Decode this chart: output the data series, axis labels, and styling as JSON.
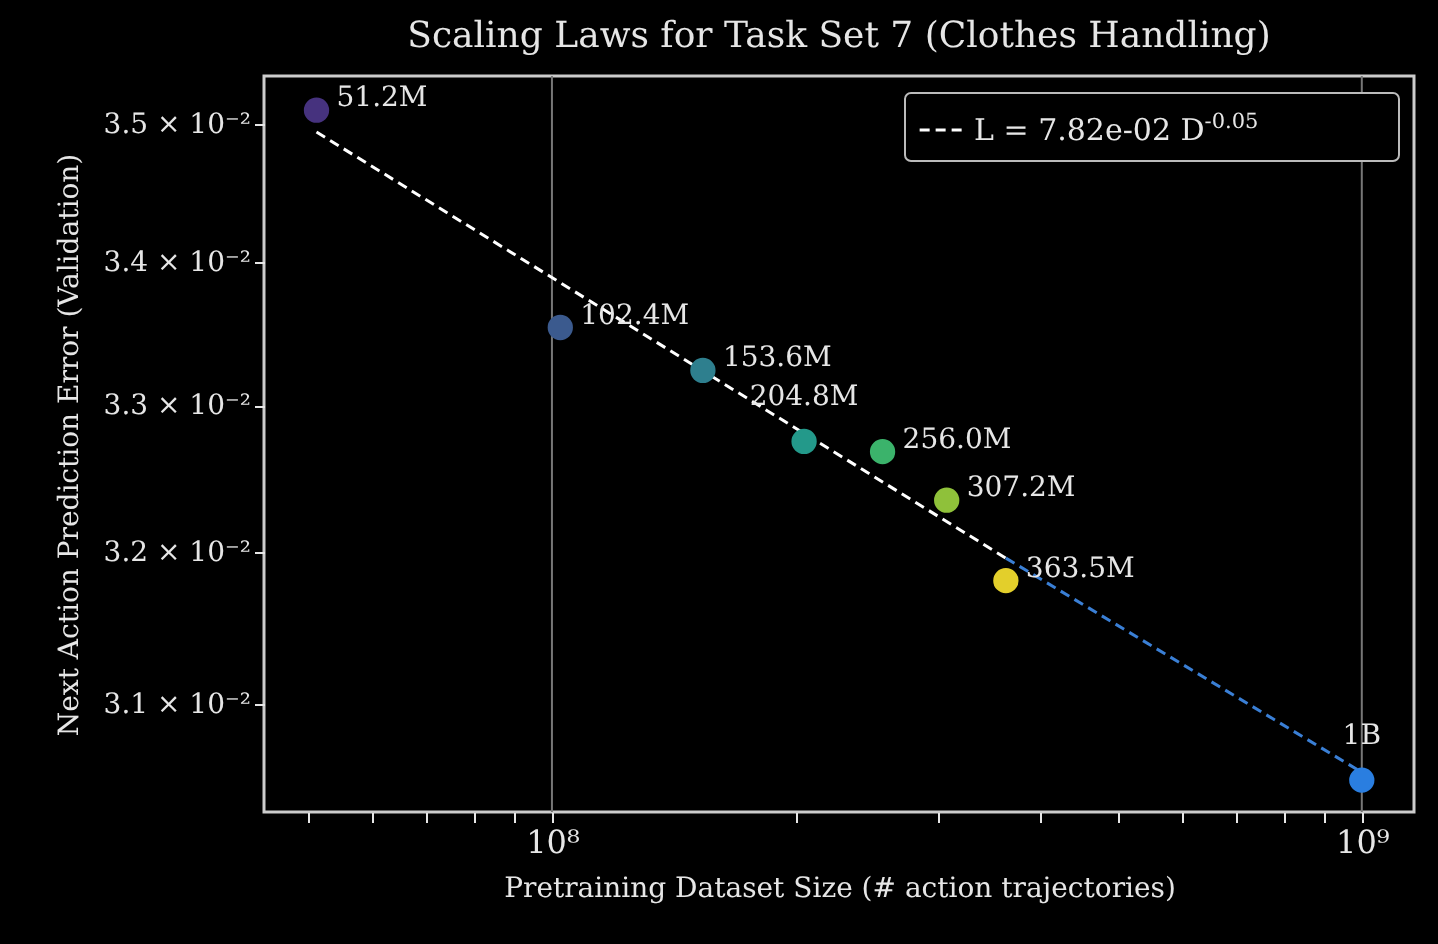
{
  "chart_data": {
    "type": "scatter",
    "title": "Scaling Laws for Task Set 7 (Clothes Handling)",
    "xlabel": "Pretraining Dataset Size (# action trajectories)",
    "ylabel": "Next Action Prediction Error (Validation)",
    "log": "xy",
    "grid": "x",
    "legend": "top right",
    "xlim": [
      44100000,
      1160000000
    ],
    "ylim": [
      0.030307,
      0.035352
    ],
    "xticks": [
      {
        "value": 50000000,
        "label": null
      },
      {
        "value": 60000000,
        "label": null
      },
      {
        "value": 70000000,
        "label": null
      },
      {
        "value": 80000000,
        "label": null
      },
      {
        "value": 90000000,
        "label": null
      },
      {
        "value": 100000000,
        "label": "10⁸"
      },
      {
        "value": 200000000,
        "label": null
      },
      {
        "value": 300000000,
        "label": null
      },
      {
        "value": 400000000,
        "label": null
      },
      {
        "value": 500000000,
        "label": null
      },
      {
        "value": 600000000,
        "label": null
      },
      {
        "value": 700000000,
        "label": null
      },
      {
        "value": 800000000,
        "label": null
      },
      {
        "value": 900000000,
        "label": null
      },
      {
        "value": 1000000000,
        "label": "10⁹"
      }
    ],
    "yticks": [
      {
        "value": 0.031,
        "label": "3.1 × 10⁻²"
      },
      {
        "value": 0.032,
        "label": "3.2 × 10⁻²"
      },
      {
        "value": 0.033,
        "label": "3.3 × 10⁻²"
      },
      {
        "value": 0.034,
        "label": "3.4 × 10⁻²"
      },
      {
        "value": 0.035,
        "label": "3.5 × 10⁻²"
      }
    ],
    "x": [
      51200000,
      102400000,
      153600000,
      204800000,
      256000000,
      307200000,
      363500000,
      1000000000
    ],
    "series": [
      {
        "type": "line",
        "name": "L = 7.82e-02 D$^{-0.05}$",
        "color": "#ffffff",
        "line_style": "dashed",
        "x": [
          51200000,
          363500000
        ],
        "values": [
          0.03494,
          0.03196
        ]
      },
      {
        "type": "line",
        "color": "#3a7fd5",
        "line_style": "dashed",
        "x": [
          363500000,
          1000000000
        ],
        "values": [
          0.03196,
          0.03056
        ]
      },
      {
        "marker": "circle",
        "colors": [
          "#46327e",
          "#3b5a8e",
          "#2e7f8e",
          "#23998a",
          "#3bb36b",
          "#8fc13a",
          "#e3cf2b",
          "#2a7ee0"
        ],
        "values": [
          0.0351,
          0.03354,
          0.03324,
          0.03275,
          0.03268,
          0.03235,
          0.03181,
          0.03051
        ]
      }
    ],
    "annotations": [
      {
        "text": "51.2M",
        "x": 51200000,
        "y": 0.0351
      },
      {
        "text": "102.4M",
        "x": 102400000,
        "y": 0.03354
      },
      {
        "text": "153.6M",
        "x": 153600000,
        "y": 0.03324
      },
      {
        "text": "204.8M",
        "x": 204800000,
        "y": 0.03275
      },
      {
        "text": "256.0M",
        "x": 256000000,
        "y": 0.03268
      },
      {
        "text": "307.2M",
        "x": 307200000,
        "y": 0.03235
      },
      {
        "text": "363.5M",
        "x": 363500000,
        "y": 0.03181
      },
      {
        "text": "1B",
        "x": 1000000000,
        "y": 0.03051
      }
    ]
  }
}
